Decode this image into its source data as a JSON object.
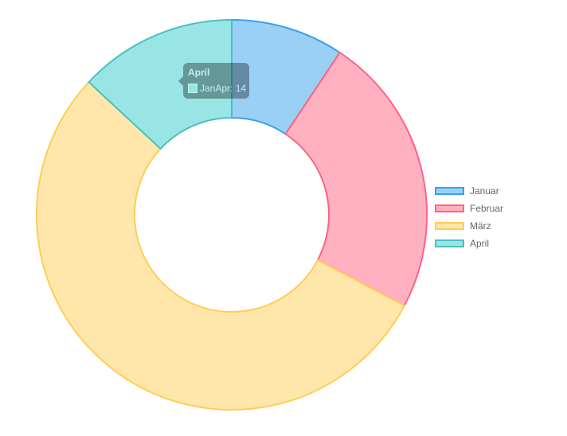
{
  "chart_data": {
    "type": "doughnut",
    "dataset_label": "JanApr",
    "categories": [
      "Januar",
      "Februar",
      "März",
      "April"
    ],
    "values": [
      10,
      25,
      58,
      14
    ],
    "background_colors": [
      "#9ad0f5",
      "#ffb1c1",
      "#ffe6aa",
      "#99e5e5"
    ],
    "border_colors": [
      "#36a2eb",
      "#ff6384",
      "#ffcd56",
      "#4bc0c0"
    ],
    "legend_position": "right"
  },
  "tooltip": {
    "title": "April",
    "label": "JanApr: 14",
    "color": "#99e5e5"
  }
}
